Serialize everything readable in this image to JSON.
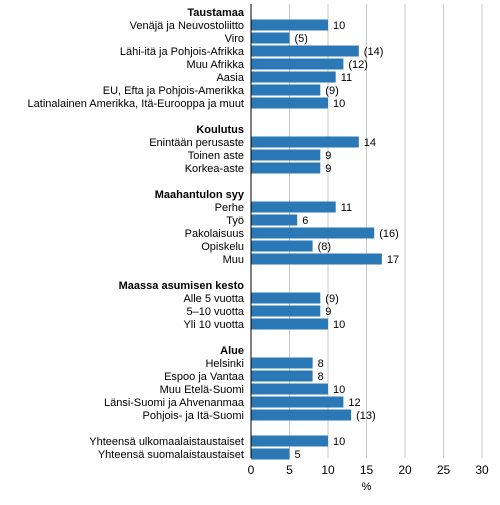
{
  "chart_data": {
    "type": "bar",
    "orientation": "horizontal",
    "xlabel": "%",
    "xlim": [
      0,
      30
    ],
    "x_ticks": [
      "0",
      "5",
      "10",
      "15",
      "20",
      "25",
      "30"
    ],
    "grid": true,
    "colors": {
      "bar": "#2a78b5",
      "grid": "#c8c8c8"
    },
    "groups": [
      {
        "title": "Taustamaa",
        "items": [
          {
            "label": "Venäjä ja Neuvostoliitto",
            "value": 10,
            "value_label": "10"
          },
          {
            "label": "Viro",
            "value": 5,
            "value_label": "(5)"
          },
          {
            "label": "Lähi-itä ja Pohjois-Afrikka",
            "value": 14,
            "value_label": "(14)"
          },
          {
            "label": "Muu Afrikka",
            "value": 12,
            "value_label": "(12)"
          },
          {
            "label": "Aasia",
            "value": 11,
            "value_label": "11"
          },
          {
            "label": "EU, Efta ja Pohjois-Amerikka",
            "value": 9,
            "value_label": "(9)"
          },
          {
            "label": "Latinalainen Amerikka, Itä-Eurooppa ja muut",
            "value": 10,
            "value_label": "10"
          }
        ]
      },
      {
        "title": "Koulutus",
        "items": [
          {
            "label": "Enintään perusaste",
            "value": 14,
            "value_label": "14"
          },
          {
            "label": "Toinen aste",
            "value": 9,
            "value_label": "9"
          },
          {
            "label": "Korkea-aste",
            "value": 9,
            "value_label": "9"
          }
        ]
      },
      {
        "title": "Maahantulon syy",
        "items": [
          {
            "label": "Perhe",
            "value": 11,
            "value_label": "11"
          },
          {
            "label": "Työ",
            "value": 6,
            "value_label": "6"
          },
          {
            "label": "Pakolaisuus",
            "value": 16,
            "value_label": "(16)"
          },
          {
            "label": "Opiskelu",
            "value": 8,
            "value_label": "(8)"
          },
          {
            "label": "Muu",
            "value": 17,
            "value_label": "17"
          }
        ]
      },
      {
        "title": "Maassa asumisen kesto",
        "items": [
          {
            "label": "Alle 5 vuotta",
            "value": 9,
            "value_label": "(9)"
          },
          {
            "label": "5–10 vuotta",
            "value": 9,
            "value_label": "9"
          },
          {
            "label": "Yli 10 vuotta",
            "value": 10,
            "value_label": "10"
          }
        ]
      },
      {
        "title": "Alue",
        "items": [
          {
            "label": "Helsinki",
            "value": 8,
            "value_label": "8"
          },
          {
            "label": "Espoo ja Vantaa",
            "value": 8,
            "value_label": "8"
          },
          {
            "label": "Muu Etelä-Suomi",
            "value": 10,
            "value_label": "10"
          },
          {
            "label": "Länsi-Suomi ja Ahvenanmaa",
            "value": 12,
            "value_label": "12"
          },
          {
            "label": "Pohjois- ja Itä-Suomi",
            "value": 13,
            "value_label": "(13)"
          }
        ]
      },
      {
        "title": "",
        "items": [
          {
            "label": "Yhteensä ulkomaalaistaustaiset",
            "value": 10,
            "value_label": "10"
          },
          {
            "label": "Yhteensä suomalaistaustaiset",
            "value": 5,
            "value_label": "5"
          }
        ]
      }
    ]
  }
}
